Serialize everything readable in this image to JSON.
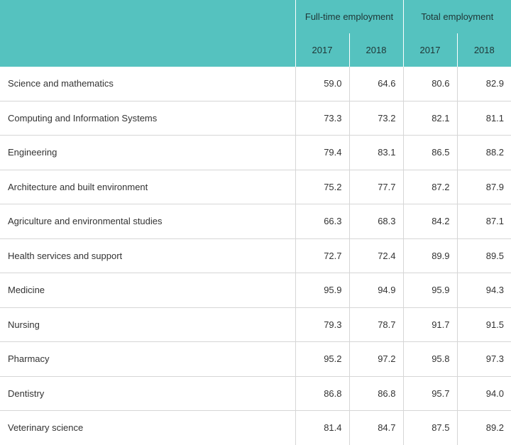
{
  "header": {
    "groups": [
      "Full-time employment",
      "Total employment"
    ],
    "years": [
      "2017",
      "2018",
      "2017",
      "2018"
    ]
  },
  "rows": [
    {
      "label": "Science and mathematics",
      "values": [
        "59.0",
        "64.6",
        "80.6",
        "82.9"
      ]
    },
    {
      "label": "Computing and Information Systems",
      "values": [
        "73.3",
        "73.2",
        "82.1",
        "81.1"
      ]
    },
    {
      "label": "Engineering",
      "values": [
        "79.4",
        "83.1",
        "86.5",
        "88.2"
      ]
    },
    {
      "label": "Architecture and built environment",
      "values": [
        "75.2",
        "77.7",
        "87.2",
        "87.9"
      ]
    },
    {
      "label": "Agriculture and environmental studies",
      "values": [
        "66.3",
        "68.3",
        "84.2",
        "87.1"
      ]
    },
    {
      "label": "Health services and support",
      "values": [
        "72.7",
        "72.4",
        "89.9",
        "89.5"
      ]
    },
    {
      "label": "Medicine",
      "values": [
        "95.9",
        "94.9",
        "95.9",
        "94.3"
      ]
    },
    {
      "label": "Nursing",
      "values": [
        "79.3",
        "78.7",
        "91.7",
        "91.5"
      ]
    },
    {
      "label": "Pharmacy",
      "values": [
        "95.2",
        "97.2",
        "95.8",
        "97.3"
      ]
    },
    {
      "label": "Dentistry",
      "values": [
        "86.8",
        "86.8",
        "95.7",
        "94.0"
      ]
    },
    {
      "label": "Veterinary science",
      "values": [
        "81.4",
        "84.7",
        "87.5",
        "89.2"
      ]
    }
  ],
  "colors": {
    "header_bg": "#55c2bf",
    "grid_line": "#d6d6d6"
  }
}
